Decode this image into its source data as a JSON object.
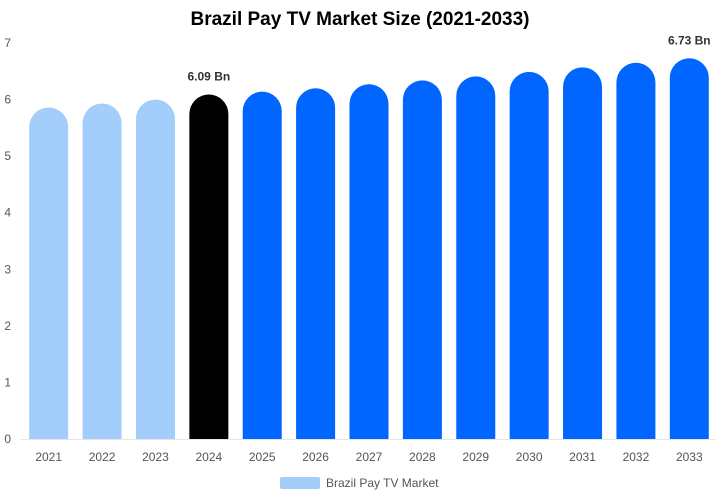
{
  "chart_data": {
    "type": "bar",
    "title": "Brazil Pay TV Market Size (2021-2033)",
    "xlabel": "",
    "ylabel": "",
    "categories": [
      "2021",
      "2022",
      "2023",
      "2024",
      "2025",
      "2026",
      "2027",
      "2028",
      "2029",
      "2030",
      "2031",
      "2032",
      "2033"
    ],
    "series": [
      {
        "name": "Brazil Pay TV Market",
        "values": [
          5.86,
          5.93,
          6.0,
          6.09,
          6.14,
          6.2,
          6.27,
          6.34,
          6.41,
          6.49,
          6.57,
          6.65,
          6.73
        ],
        "colors": [
          "#a3cdfa",
          "#a3cdfa",
          "#a3cdfa",
          "#000000",
          "#0066ff",
          "#0066ff",
          "#0066ff",
          "#0066ff",
          "#0066ff",
          "#0066ff",
          "#0066ff",
          "#0066ff",
          "#0066ff"
        ]
      }
    ],
    "data_labels": [
      {
        "category": "2024",
        "text": "6.09 Bn"
      },
      {
        "category": "2033",
        "text": "6.73 Bn"
      }
    ],
    "ylim": [
      0,
      7
    ],
    "yticks": [
      "0",
      "1",
      "2",
      "3",
      "4",
      "5",
      "6",
      "7"
    ],
    "grid": false,
    "legend": {
      "position": "bottom",
      "swatch_color": "#a3cdfa"
    }
  }
}
